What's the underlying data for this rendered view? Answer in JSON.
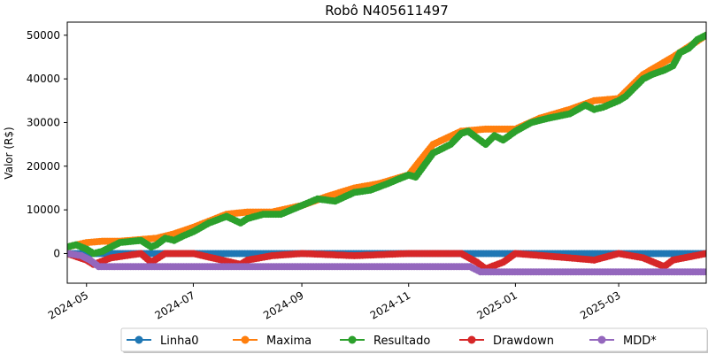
{
  "chart_data": {
    "type": "line",
    "title": "Robô N405611497",
    "ylabel": "Valor (R$)",
    "xlabel": "",
    "xlim": [
      "2024-04-20",
      "2025-04-20"
    ],
    "ylim": [
      -6800,
      53000
    ],
    "y_ticks": [
      0,
      10000,
      20000,
      30000,
      40000,
      50000
    ],
    "x_ticks": [
      {
        "date": "2024-05-01",
        "label": "2024-05"
      },
      {
        "date": "2024-07-01",
        "label": "2024-07"
      },
      {
        "date": "2024-09-01",
        "label": "2024-09"
      },
      {
        "date": "2024-11-01",
        "label": "2024-11"
      },
      {
        "date": "2025-01-01",
        "label": "2025-01"
      },
      {
        "date": "2025-03-01",
        "label": "2025-03"
      }
    ],
    "grid": false,
    "legend": "bottom-center",
    "series": [
      {
        "name": "Linha0",
        "color": "#1f77b4",
        "x": [
          "2024-04-20",
          "2025-04-20"
        ],
        "y": [
          0,
          0
        ]
      },
      {
        "name": "Maxima",
        "color": "#ff7f0e",
        "x": [
          "2024-04-20",
          "2024-05-01",
          "2024-05-10",
          "2024-05-20",
          "2024-06-01",
          "2024-06-10",
          "2024-06-20",
          "2024-07-01",
          "2024-07-20",
          "2024-08-01",
          "2024-08-15",
          "2024-09-01",
          "2024-09-15",
          "2024-10-01",
          "2024-10-15",
          "2024-11-01",
          "2024-11-15",
          "2024-12-01",
          "2024-12-15",
          "2025-01-01",
          "2025-01-15",
          "2025-02-01",
          "2025-02-15",
          "2025-03-01",
          "2025-03-15",
          "2025-04-01",
          "2025-04-20"
        ],
        "y": [
          1500,
          2500,
          2800,
          2800,
          3200,
          3500,
          4500,
          6000,
          9000,
          9500,
          9500,
          11000,
          13000,
          15000,
          16000,
          18000,
          25000,
          28000,
          28500,
          28500,
          31000,
          33000,
          35000,
          35500,
          41000,
          45000,
          50000
        ]
      },
      {
        "name": "Resultado",
        "color": "#2ca02c",
        "x": [
          "2024-04-20",
          "2024-04-25",
          "2024-05-01",
          "2024-05-05",
          "2024-05-10",
          "2024-05-15",
          "2024-05-20",
          "2024-06-01",
          "2024-06-07",
          "2024-06-10",
          "2024-06-15",
          "2024-06-20",
          "2024-06-25",
          "2024-07-01",
          "2024-07-10",
          "2024-07-20",
          "2024-07-28",
          "2024-08-01",
          "2024-08-10",
          "2024-08-20",
          "2024-09-01",
          "2024-09-10",
          "2024-09-20",
          "2024-10-01",
          "2024-10-10",
          "2024-10-20",
          "2024-11-01",
          "2024-11-05",
          "2024-11-15",
          "2024-11-25",
          "2024-12-01",
          "2024-12-05",
          "2024-12-10",
          "2024-12-15",
          "2024-12-20",
          "2024-12-25",
          "2025-01-01",
          "2025-01-10",
          "2025-01-20",
          "2025-02-01",
          "2025-02-10",
          "2025-02-15",
          "2025-02-20",
          "2025-03-01",
          "2025-03-05",
          "2025-03-15",
          "2025-03-20",
          "2025-03-27",
          "2025-04-01",
          "2025-04-05",
          "2025-04-10",
          "2025-04-15",
          "2025-04-20"
        ],
        "y": [
          1500,
          2000,
          1000,
          0,
          500,
          1500,
          2500,
          3000,
          1500,
          2000,
          3500,
          3000,
          4000,
          5000,
          7000,
          8500,
          7000,
          8000,
          9000,
          9000,
          11000,
          12500,
          12000,
          14000,
          14500,
          16000,
          18000,
          17500,
          23000,
          25000,
          27500,
          28000,
          26500,
          25000,
          27000,
          26000,
          28000,
          30000,
          31000,
          32000,
          34000,
          33000,
          33500,
          35000,
          36000,
          40000,
          41000,
          42000,
          43000,
          46000,
          47000,
          49000,
          50000
        ]
      },
      {
        "name": "Drawdown",
        "color": "#d62728",
        "x": [
          "2024-04-20",
          "2024-05-01",
          "2024-05-05",
          "2024-05-15",
          "2024-06-01",
          "2024-06-07",
          "2024-06-15",
          "2024-07-01",
          "2024-07-28",
          "2024-08-01",
          "2024-08-15",
          "2024-09-01",
          "2024-10-01",
          "2024-11-01",
          "2024-12-01",
          "2024-12-10",
          "2024-12-15",
          "2024-12-25",
          "2025-01-01",
          "2025-02-01",
          "2025-02-15",
          "2025-03-01",
          "2025-03-15",
          "2025-03-27",
          "2025-04-01",
          "2025-04-20"
        ],
        "y": [
          0,
          -1500,
          -2500,
          -1000,
          0,
          -2000,
          0,
          0,
          -2500,
          -1500,
          -500,
          0,
          -500,
          0,
          0,
          -2000,
          -3500,
          -2000,
          0,
          -1000,
          -1500,
          0,
          -1000,
          -3000,
          -1500,
          0
        ]
      },
      {
        "name": "MDD*",
        "color": "#9467bd",
        "x": [
          "2024-04-20",
          "2024-04-28",
          "2024-05-03",
          "2024-05-08",
          "2024-12-06",
          "2024-12-12",
          "2025-04-20"
        ],
        "y": [
          0,
          -500,
          -1500,
          -3000,
          -3000,
          -4200,
          -4200
        ]
      }
    ]
  }
}
